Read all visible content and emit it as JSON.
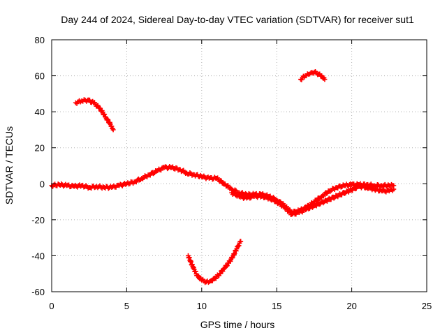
{
  "chart_data": {
    "type": "scatter",
    "title": "Day 244 of 2024, Sidereal Day-to-day VTEC variation (SDTVAR) for receiver sut1",
    "xlabel": "GPS time / hours",
    "ylabel": "SDTVAR / TECUs",
    "xlim": [
      0,
      25
    ],
    "ylim": [
      -60,
      80
    ],
    "xticks": [
      0,
      5,
      10,
      15,
      20,
      25
    ],
    "xtick_labels": [
      "0",
      "5",
      "10",
      "15",
      "20",
      "25"
    ],
    "yticks": [
      -60,
      -40,
      -20,
      0,
      20,
      40,
      60,
      80
    ],
    "ytick_labels": [
      "-60",
      "-40",
      "-20",
      "0",
      "20",
      "40",
      "60",
      "80"
    ],
    "grid": true,
    "marker": "plus",
    "color": "#ff0000",
    "series": [
      {
        "name": "main-track",
        "x": [
          0.0,
          0.5,
          1.0,
          1.5,
          2.0,
          2.5,
          3.0,
          3.5,
          4.0,
          4.5,
          5.0,
          5.5,
          6.0,
          6.5,
          7.0,
          7.5,
          8.0,
          8.5,
          9.0,
          9.5,
          10.0,
          10.5,
          11.0,
          11.5,
          12.0,
          12.5,
          13.0,
          13.5,
          14.0,
          14.5,
          15.0,
          15.5,
          16.0,
          16.5,
          17.0,
          17.5,
          18.0,
          18.5,
          19.0,
          19.5,
          20.0,
          20.5,
          21.0,
          21.5,
          22.0,
          22.5,
          22.8
        ],
        "y": [
          -1,
          -0.5,
          -1,
          -1.5,
          -1,
          -2,
          -1.5,
          -2,
          -2,
          -1,
          0,
          1,
          3,
          5,
          7,
          9,
          9,
          8,
          6,
          5,
          4,
          3,
          3,
          0,
          -3,
          -5,
          -6,
          -6,
          -6,
          -7,
          -9,
          -12,
          -16,
          -15,
          -13,
          -10,
          -7,
          -4,
          -2,
          -1,
          -0.5,
          -0.5,
          -0.5,
          -1,
          -1,
          -1,
          -1
        ]
      },
      {
        "name": "main-track-lower-band",
        "x": [
          12.0,
          12.5,
          13.0,
          13.5,
          14.0,
          14.5,
          15.0,
          15.5,
          16.0,
          16.5,
          17.0,
          20.5,
          21.0,
          21.5,
          22.0,
          22.5,
          22.8
        ],
        "y": [
          -5,
          -7,
          -8,
          -7,
          -7,
          -8,
          -10,
          -13,
          -17,
          -16,
          -14,
          -1.5,
          -2,
          -3,
          -4,
          -4,
          -3
        ]
      },
      {
        "name": "arc-upper-left",
        "x": [
          1.6,
          2.0,
          2.4,
          2.8,
          3.2,
          3.6,
          4.0,
          4.1
        ],
        "y": [
          45,
          46,
          46.5,
          45,
          42,
          37,
          32,
          30
        ]
      },
      {
        "name": "arc-upper-right",
        "x": [
          16.6,
          16.9,
          17.2,
          17.5,
          17.8,
          18.0,
          18.2
        ],
        "y": [
          58,
          60,
          61,
          62,
          61,
          60,
          58
        ]
      },
      {
        "name": "arc-lower",
        "x": [
          9.1,
          9.4,
          9.7,
          10.0,
          10.3,
          10.6,
          10.9,
          11.2,
          11.5,
          11.8,
          12.1,
          12.4,
          12.6
        ],
        "y": [
          -40,
          -46,
          -51,
          -53.5,
          -54.5,
          -54,
          -52.5,
          -50,
          -47,
          -44,
          -40,
          -35,
          -32
        ]
      }
    ]
  }
}
